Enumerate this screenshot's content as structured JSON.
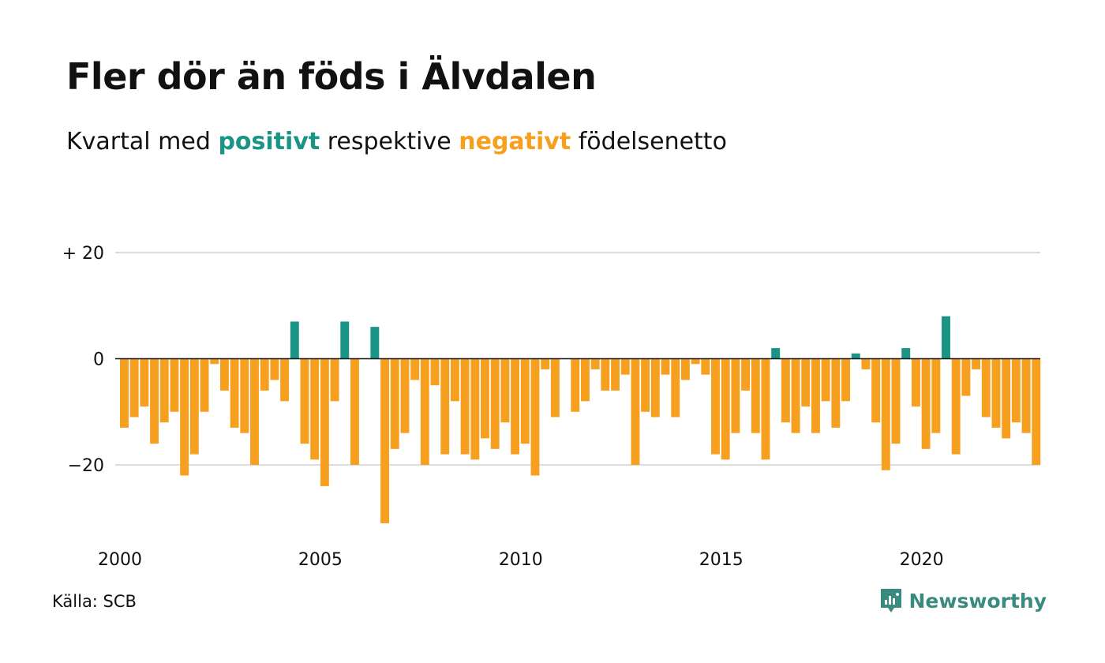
{
  "title": "Fler dör än föds i Älvdalen",
  "subtitle": {
    "before": "Kvartal med",
    "positive": "positivt",
    "middle": "respektive",
    "negative": "negativt",
    "after": "födelsenetto"
  },
  "source": "Källa: SCB",
  "brand": {
    "name": "Newsworthy",
    "icon": "newsworthy-logo-icon"
  },
  "colors": {
    "positive": "#1a9485",
    "negative": "#f7a01f",
    "grid": "#dddddd",
    "zero_line": "#111111",
    "brand": "#3a8a80"
  },
  "chart_data": {
    "type": "bar",
    "y_tick_labels": [
      "+ 20",
      "0",
      "−20"
    ],
    "y_ticks": [
      20,
      0,
      -20
    ],
    "ylim": [
      -32,
      20
    ],
    "x_tick_labels": [
      "2000",
      "2005",
      "2010",
      "2015",
      "2020"
    ],
    "x_ticks": [
      2000,
      2005,
      2010,
      2015,
      2020
    ],
    "start_year": 2000,
    "start_quarter": 1,
    "grid": true,
    "values": [
      -13,
      -11,
      -9,
      -16,
      -12,
      -10,
      -22,
      -18,
      -10,
      -1,
      -6,
      -13,
      -14,
      -20,
      -6,
      -4,
      -8,
      7,
      -16,
      -19,
      -24,
      -8,
      7,
      -20,
      0,
      6,
      -31,
      -17,
      -14,
      -4,
      -20,
      -5,
      -18,
      -8,
      -18,
      -19,
      -15,
      -17,
      -12,
      -18,
      -16,
      -22,
      -2,
      -11,
      0,
      -10,
      -8,
      -2,
      -6,
      -6,
      -3,
      -20,
      -10,
      -11,
      -3,
      -11,
      -4,
      -1,
      -3,
      -18,
      -19,
      -14,
      -6,
      -14,
      -19,
      2,
      -12,
      -14,
      -9,
      -14,
      -8,
      -13,
      -8,
      1,
      -2,
      -12,
      -21,
      -16,
      2,
      -9,
      -17,
      -14,
      8,
      -18,
      -7,
      -2,
      -11,
      -13,
      -15,
      -12,
      -14,
      -20
    ]
  }
}
